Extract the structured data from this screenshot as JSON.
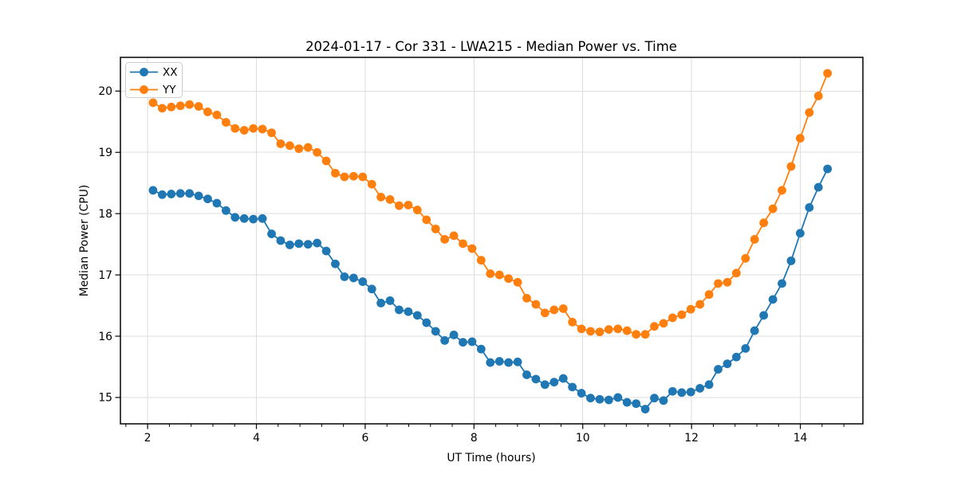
{
  "chart_data": {
    "type": "line",
    "title": "2024-01-17 - Cor 331 - LWA215 - Median Power vs. Time",
    "xlabel": "UT Time (hours)",
    "ylabel": "Median Power (CPU)",
    "legend_position": "upper left",
    "grid": true,
    "axes": {
      "xticks": [
        2,
        4,
        6,
        8,
        10,
        12,
        14
      ],
      "yticks": [
        15,
        16,
        17,
        18,
        19,
        20
      ],
      "xlim": [
        1.5,
        15.15
      ],
      "ylim": [
        14.57,
        20.55
      ],
      "minor_x_step": 0.4
    },
    "x": [
      2.1,
      2.268,
      2.435,
      2.603,
      2.77,
      2.938,
      3.105,
      3.273,
      3.441,
      3.608,
      3.776,
      3.943,
      4.111,
      4.279,
      4.446,
      4.614,
      4.781,
      4.949,
      5.116,
      5.284,
      5.451,
      5.619,
      5.787,
      5.954,
      6.122,
      6.289,
      6.457,
      6.624,
      6.792,
      6.959,
      7.127,
      7.295,
      7.462,
      7.63,
      7.797,
      7.965,
      8.132,
      8.3,
      8.468,
      8.635,
      8.803,
      8.97,
      9.138,
      9.305,
      9.473,
      9.641,
      9.808,
      9.976,
      10.143,
      10.311,
      10.478,
      10.646,
      10.814,
      10.981,
      11.149,
      11.316,
      11.484,
      11.651,
      11.819,
      11.986,
      12.154,
      12.322,
      12.489,
      12.657,
      12.824,
      12.992,
      13.159,
      13.327,
      13.495,
      13.662,
      13.83,
      13.997,
      14.165,
      14.332,
      14.5
    ],
    "series": [
      {
        "name": "XX",
        "color": "#1f77b4",
        "values": [
          18.38,
          18.31,
          18.32,
          18.33,
          18.33,
          18.29,
          18.24,
          18.17,
          18.05,
          17.94,
          17.92,
          17.91,
          17.92,
          17.67,
          17.56,
          17.49,
          17.51,
          17.5,
          17.52,
          17.39,
          17.18,
          16.97,
          16.95,
          16.89,
          16.77,
          16.54,
          16.58,
          16.43,
          16.4,
          16.34,
          16.22,
          16.08,
          15.93,
          16.02,
          15.9,
          15.91,
          15.79,
          15.57,
          15.59,
          15.57,
          15.58,
          15.37,
          15.3,
          15.21,
          15.25,
          15.31,
          15.17,
          15.07,
          14.99,
          14.97,
          14.96,
          15.0,
          14.92,
          14.9,
          14.81,
          14.99,
          14.95,
          15.1,
          15.08,
          15.09,
          15.15,
          15.21,
          15.46,
          15.55,
          15.66,
          15.8,
          16.09,
          16.34,
          16.6,
          16.86,
          17.23,
          17.68,
          18.1,
          18.43,
          18.73
        ]
      },
      {
        "name": "YY",
        "color": "#ff7f0e",
        "values": [
          19.81,
          19.72,
          19.74,
          19.76,
          19.78,
          19.75,
          19.66,
          19.61,
          19.49,
          19.39,
          19.36,
          19.39,
          19.38,
          19.32,
          19.14,
          19.11,
          19.06,
          19.08,
          19.0,
          18.86,
          18.66,
          18.6,
          18.61,
          18.6,
          18.48,
          18.27,
          18.23,
          18.13,
          18.14,
          18.06,
          17.9,
          17.75,
          17.58,
          17.64,
          17.51,
          17.43,
          17.24,
          17.02,
          17.0,
          16.94,
          16.88,
          16.62,
          16.52,
          16.38,
          16.43,
          16.45,
          16.23,
          16.12,
          16.08,
          16.07,
          16.11,
          16.12,
          16.09,
          16.03,
          16.03,
          16.16,
          16.21,
          16.3,
          16.35,
          16.44,
          16.52,
          16.68,
          16.86,
          16.88,
          17.03,
          17.27,
          17.58,
          17.85,
          18.08,
          18.38,
          18.77,
          19.23,
          19.65,
          19.92,
          20.29
        ]
      }
    ],
    "style": {
      "grid_color": "#dddddd",
      "spine_color": "#000000",
      "background": "#ffffff",
      "marker_radius": 5.4,
      "line_width": 1.8
    }
  }
}
